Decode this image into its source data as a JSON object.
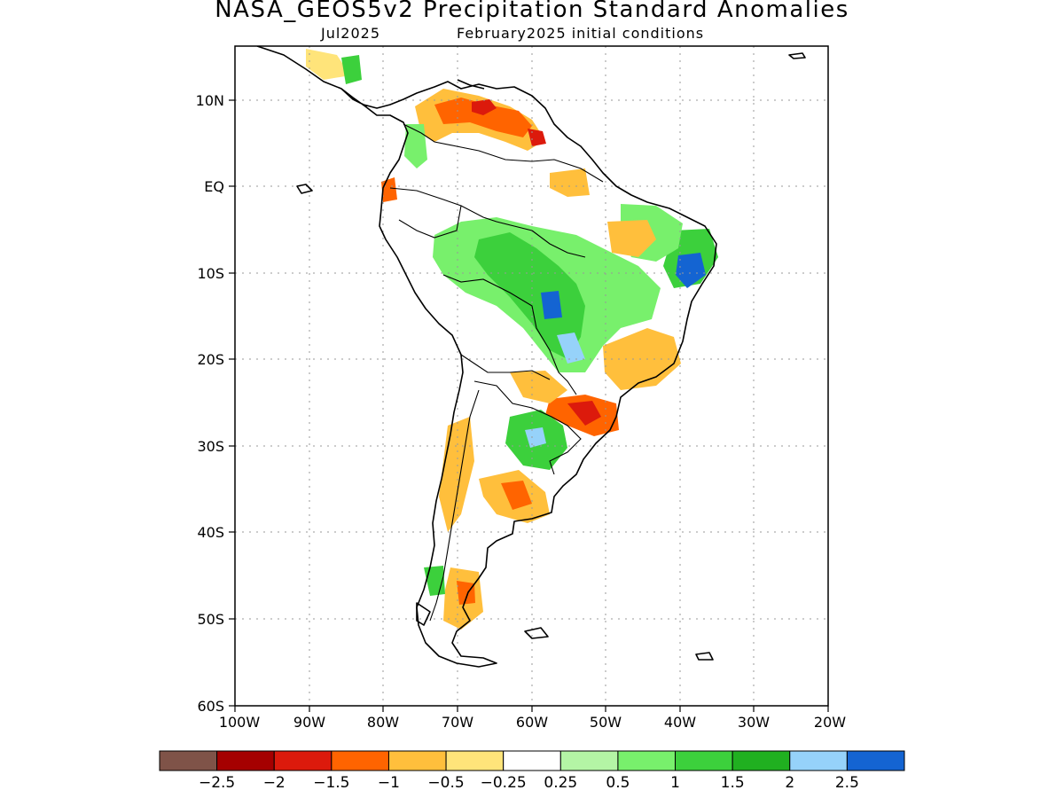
{
  "title": "NASA_GEOS5v2 Precipitation Standard Anomalies",
  "subtitle_left": "Jul2025",
  "subtitle_right": "February2025 initial conditions",
  "map": {
    "lat_labels": [
      "10N",
      "EQ",
      "10S",
      "20S",
      "30S",
      "40S",
      "50S",
      "60S"
    ],
    "lon_labels": [
      "100W",
      "90W",
      "80W",
      "70W",
      "60W",
      "50W",
      "40W",
      "30W",
      "20W"
    ],
    "grid": "dotted"
  },
  "colorbar": {
    "colors": [
      "#7f5348",
      "#a50000",
      "#dc1a0c",
      "#ff6400",
      "#ffbf3c",
      "#ffe47a",
      "#ffffff",
      "#b4f5a5",
      "#78f06c",
      "#3cd03c",
      "#20b020",
      "#96d2fa",
      "#1464d2"
    ],
    "labels": [
      "−2.5",
      "−2",
      "−1.5",
      "−1",
      "−0.5",
      "−0.25",
      "0.25",
      "0.5",
      "1",
      "1.5",
      "2",
      "2.5"
    ]
  }
}
